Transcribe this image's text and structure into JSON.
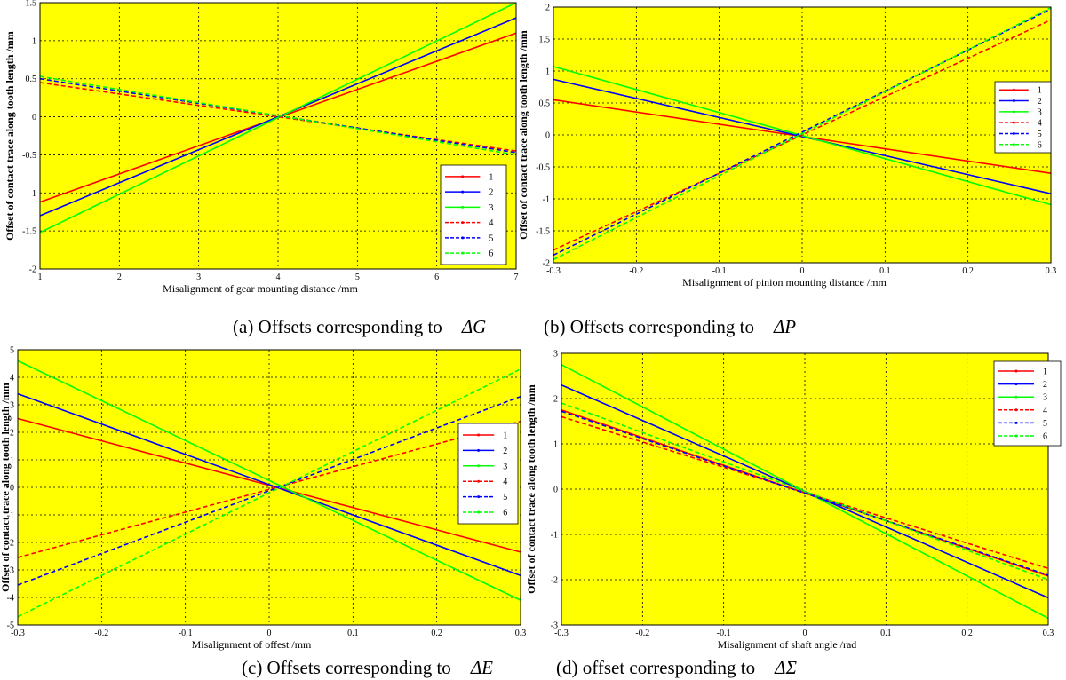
{
  "captions": [
    {
      "text": "(a) Offsets corresponding to",
      "symbol": "ΔG"
    },
    {
      "text": "(b) Offsets corresponding to",
      "symbol": "ΔP"
    },
    {
      "text": "(c) Offsets corresponding to",
      "symbol": "ΔE"
    },
    {
      "text": "(d) offset corresponding to",
      "symbol": "ΔΣ"
    }
  ],
  "colors": {
    "background": "#ffff00",
    "grid": "#000000",
    "series": [
      "#ff0000",
      "#0000ff",
      "#00ff00",
      "#ff0000",
      "#0000ff",
      "#00ff00"
    ]
  },
  "chart_data": [
    {
      "type": "line",
      "xlabel": "Misalignment of gear mounting distance  /mm",
      "ylabel": "Offset of contact trace along tooth length  /mm",
      "xlim": [
        1,
        7
      ],
      "ylim": [
        -2,
        1.5
      ],
      "xticks": [
        "1",
        "2",
        "3",
        "4",
        "5",
        "6",
        "7"
      ],
      "yticks": [
        "-2",
        "-1.5",
        "-1",
        "-0.5",
        "0",
        "0.5",
        "1",
        "1.5"
      ],
      "grid": true,
      "legend_position": "bottom-right",
      "series": [
        {
          "name": "1",
          "style": "solid",
          "color": "#ff0000",
          "x": [
            1,
            7
          ],
          "y": [
            -1.12,
            1.1
          ]
        },
        {
          "name": "2",
          "style": "solid",
          "color": "#0000ff",
          "x": [
            1,
            7
          ],
          "y": [
            -1.3,
            1.3
          ]
        },
        {
          "name": "3",
          "style": "solid",
          "color": "#00ff00",
          "x": [
            1,
            7
          ],
          "y": [
            -1.52,
            1.5
          ]
        },
        {
          "name": "4",
          "style": "dashed",
          "color": "#ff0000",
          "x": [
            1,
            7
          ],
          "y": [
            0.45,
            -0.45
          ]
        },
        {
          "name": "5",
          "style": "dashed",
          "color": "#0000ff",
          "x": [
            1,
            7
          ],
          "y": [
            0.5,
            -0.47
          ]
        },
        {
          "name": "6",
          "style": "dashed",
          "color": "#00ff00",
          "x": [
            1,
            7
          ],
          "y": [
            0.53,
            -0.5
          ]
        }
      ]
    },
    {
      "type": "line",
      "xlabel": "Misalignment of pinion mounting distance  /mm",
      "ylabel": "Offset of contact trace along tooth length  /mm",
      "xlim": [
        -0.3,
        0.3
      ],
      "ylim": [
        -2,
        2
      ],
      "xticks": [
        "-0.3",
        "-0.2",
        "-0.1",
        "0",
        "0.1",
        "0.2",
        "0.3"
      ],
      "yticks": [
        "-2",
        "-1.5",
        "-1",
        "-0.5",
        "0",
        "0.5",
        "1",
        "1.5",
        "2"
      ],
      "grid": true,
      "legend_position": "top-right",
      "series": [
        {
          "name": "1",
          "style": "solid",
          "color": "#ff0000",
          "x": [
            -0.3,
            0.3
          ],
          "y": [
            0.55,
            -0.6
          ]
        },
        {
          "name": "2",
          "style": "solid",
          "color": "#0000ff",
          "x": [
            -0.3,
            0.3
          ],
          "y": [
            0.87,
            -0.92
          ]
        },
        {
          "name": "3",
          "style": "solid",
          "color": "#00ff00",
          "x": [
            -0.3,
            0.3
          ],
          "y": [
            1.07,
            -1.09
          ]
        },
        {
          "name": "4",
          "style": "dashed",
          "color": "#ff0000",
          "x": [
            -0.3,
            0.3
          ],
          "y": [
            -1.8,
            1.8
          ]
        },
        {
          "name": "5",
          "style": "dashed",
          "color": "#0000ff",
          "x": [
            -0.3,
            0.3
          ],
          "y": [
            -1.88,
            1.97
          ]
        },
        {
          "name": "6",
          "style": "dashed",
          "color": "#00ff00",
          "x": [
            -0.3,
            0.3
          ],
          "y": [
            -1.95,
            1.99
          ]
        }
      ]
    },
    {
      "type": "line",
      "xlabel": "Misalignment of  offest  /mm",
      "ylabel": "Offset of contact trace along tooth length  /mm",
      "xlim": [
        -0.3,
        0.3
      ],
      "ylim": [
        -5,
        5
      ],
      "xticks": [
        "-0.3",
        "-0.2",
        "-0.1",
        "0",
        "0.1",
        "0.2",
        "0.3"
      ],
      "yticks": [
        "-5",
        "-4",
        "-3",
        "-2",
        "-1",
        "0",
        "1",
        "2",
        "3",
        "4",
        "5"
      ],
      "grid": true,
      "legend_position": "right",
      "series": [
        {
          "name": "1",
          "style": "solid",
          "color": "#ff0000",
          "x": [
            -0.3,
            0.3
          ],
          "y": [
            2.5,
            -2.35
          ]
        },
        {
          "name": "2",
          "style": "solid",
          "color": "#0000ff",
          "x": [
            -0.3,
            0.3
          ],
          "y": [
            3.4,
            -3.2
          ]
        },
        {
          "name": "3",
          "style": "solid",
          "color": "#00ff00",
          "x": [
            -0.3,
            0.3
          ],
          "y": [
            4.6,
            -4.1
          ]
        },
        {
          "name": "4",
          "style": "dashed",
          "color": "#ff0000",
          "x": [
            -0.3,
            0.3
          ],
          "y": [
            -2.55,
            2.4
          ]
        },
        {
          "name": "5",
          "style": "dashed",
          "color": "#0000ff",
          "x": [
            -0.3,
            0.3
          ],
          "y": [
            -3.55,
            3.3
          ]
        },
        {
          "name": "6",
          "style": "dashed",
          "color": "#00ff00",
          "x": [
            -0.3,
            0.3
          ],
          "y": [
            -4.7,
            4.3
          ]
        }
      ]
    },
    {
      "type": "line",
      "xlabel": "Misalignment of shaft angle   /rad",
      "ylabel": "Offset of contact trace along tooth length  /mm",
      "xlim": [
        -0.3,
        0.3
      ],
      "ylim": [
        -3,
        3
      ],
      "xticks": [
        "-0.3",
        "-0.2",
        "-0.1",
        "0",
        "0.1",
        "0.2",
        "0.3"
      ],
      "yticks": [
        "-3",
        "-2",
        "-1",
        "0",
        "1",
        "2",
        "3"
      ],
      "grid": true,
      "legend_position": "top-right",
      "series": [
        {
          "name": "1",
          "style": "solid",
          "color": "#ff0000",
          "x": [
            -0.3,
            0.3
          ],
          "y": [
            1.75,
            -1.92
          ]
        },
        {
          "name": "2",
          "style": "solid",
          "color": "#0000ff",
          "x": [
            -0.3,
            0.3
          ],
          "y": [
            2.3,
            -2.4
          ]
        },
        {
          "name": "3",
          "style": "solid",
          "color": "#00ff00",
          "x": [
            -0.3,
            0.3
          ],
          "y": [
            2.75,
            -2.85
          ]
        },
        {
          "name": "4",
          "style": "dashed",
          "color": "#ff0000",
          "x": [
            -0.3,
            0.3
          ],
          "y": [
            1.6,
            -1.75
          ]
        },
        {
          "name": "5",
          "style": "dashed",
          "color": "#0000ff",
          "x": [
            -0.3,
            0.3
          ],
          "y": [
            1.72,
            -1.9
          ]
        },
        {
          "name": "6",
          "style": "dashed",
          "color": "#00ff00",
          "x": [
            -0.3,
            0.3
          ],
          "y": [
            1.9,
            -2.0
          ]
        }
      ]
    }
  ]
}
